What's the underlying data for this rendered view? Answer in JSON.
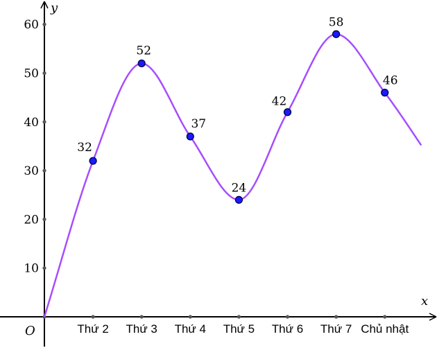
{
  "chart_data": {
    "type": "line",
    "title": "",
    "xlabel": "x",
    "ylabel": "y",
    "origin_label": "O",
    "categories": [
      "Thứ 2",
      "Thứ 3",
      "Thứ 4",
      "Thứ 5",
      "Thứ 6",
      "Thứ 7",
      "Chủ nhật"
    ],
    "series": [
      {
        "values": [
          32,
          52,
          37,
          24,
          42,
          58,
          46
        ]
      }
    ],
    "y_ticks": [
      10,
      20,
      30,
      40,
      50,
      60
    ],
    "ylim": [
      0,
      60
    ],
    "grid": false,
    "colors": {
      "line": "#a64dff",
      "point": "#1a1aff"
    }
  }
}
